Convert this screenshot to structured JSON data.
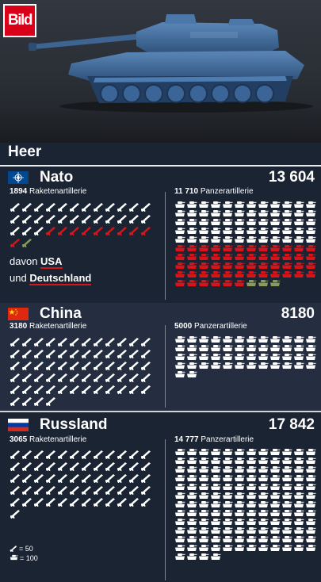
{
  "logo": "Bild",
  "section_title": "Heer",
  "colors": {
    "white": "#ffffff",
    "red": "#d7141a",
    "olive": "#8a9a5b",
    "navy": "#1b2433",
    "band": "#242e40"
  },
  "icons": {
    "rocket": "rocket-launcher-icon",
    "tank": "tank-icon"
  },
  "panels": [
    {
      "name": "Nato",
      "total": "13 604",
      "flag": "nato",
      "rockets": {
        "num": "1894",
        "label": "Raketenartillerie",
        "white": 27,
        "red": 10,
        "olive": 1
      },
      "tanks": {
        "num": "11 710",
        "label": "Panzerartillerie",
        "white": 60,
        "red": 54,
        "olive": 3
      }
    },
    {
      "name": "China",
      "total": "8180",
      "flag": "china",
      "rockets": {
        "num": "3180",
        "label": "Raketenartillerie",
        "white": 64,
        "red": 0,
        "olive": 0
      },
      "tanks": {
        "num": "5000",
        "label": "Panzerartillerie",
        "white": 50,
        "red": 0,
        "olive": 0
      }
    },
    {
      "name": "Russland",
      "total": "17 842",
      "flag": "russia",
      "rockets": {
        "num": "3065",
        "label": "Raketenartillerie",
        "white": 61,
        "red": 0,
        "olive": 0
      },
      "tanks": {
        "num": "14 777",
        "label": "Panzerartillerie",
        "white": 148,
        "red": 0,
        "olive": 0
      }
    }
  ],
  "note": {
    "davon": "davon",
    "usa": "USA",
    "und": "und",
    "de": "Deutschland"
  },
  "legend": {
    "rocket": "= 50",
    "tank": "= 100"
  }
}
